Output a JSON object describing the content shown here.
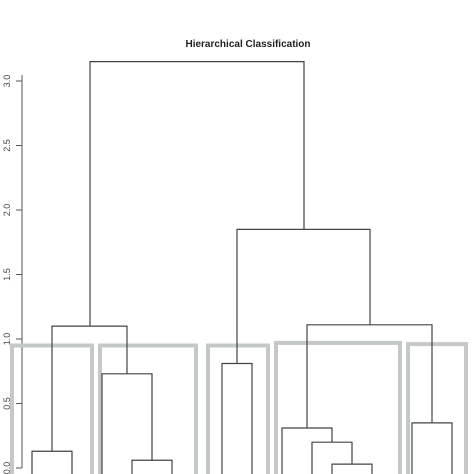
{
  "chart_data": {
    "type": "dendrogram",
    "title": "Hierarchical Classification",
    "xlabel": "",
    "ylabel": "",
    "ylim": [
      0,
      3.2
    ],
    "y_ticks": [
      0.0,
      0.5,
      1.0,
      1.5,
      2.0,
      2.5,
      3.0
    ],
    "y_tick_labels": [
      "0.0",
      "0.5",
      "1.0",
      "1.5",
      "2.0",
      "2.5",
      "3.0"
    ],
    "grid": false,
    "cluster_box_color": "#c4c8c6",
    "line_color": "#444444",
    "leaf_count": 22,
    "merges": [
      {
        "id": "m1",
        "left": 1.5,
        "right": 3.5,
        "height": 0.13
      },
      {
        "id": "m2",
        "left": 6.5,
        "right": 8.5,
        "height": 0.06
      },
      {
        "id": "m3",
        "left": 5,
        "right": 7.5,
        "height": 0.73
      },
      {
        "id": "m4",
        "left": 2.5,
        "right": 6.25,
        "height": 1.1
      },
      {
        "id": "m5",
        "left": 11,
        "right": 12.5,
        "height": 0.81
      },
      {
        "id": "m6",
        "left": 16.5,
        "right": 18.5,
        "height": 0.03
      },
      {
        "id": "m7",
        "left": 15.5,
        "right": 17.5,
        "height": 0.2
      },
      {
        "id": "m8",
        "left": 14,
        "right": 16.5,
        "height": 0.31
      },
      {
        "id": "m9",
        "left": 20.5,
        "right": 22.5,
        "height": 0.35
      },
      {
        "id": "m10",
        "left": 15.25,
        "right": 21.5,
        "height": 1.11
      },
      {
        "id": "m11",
        "left": 11.75,
        "right": 18.4,
        "height": 1.85
      },
      {
        "id": "m12",
        "left": 4.4,
        "right": 15.1,
        "height": 3.15
      }
    ],
    "clusters": [
      {
        "from": 0.5,
        "to": 4.5,
        "top": 0.95
      },
      {
        "from": 4.9,
        "to": 9.7,
        "top": 0.95
      },
      {
        "from": 10.3,
        "to": 13.3,
        "top": 0.95
      },
      {
        "from": 13.7,
        "to": 19.9,
        "top": 0.97
      },
      {
        "from": 20.3,
        "to": 23.2,
        "top": 0.96
      }
    ]
  }
}
